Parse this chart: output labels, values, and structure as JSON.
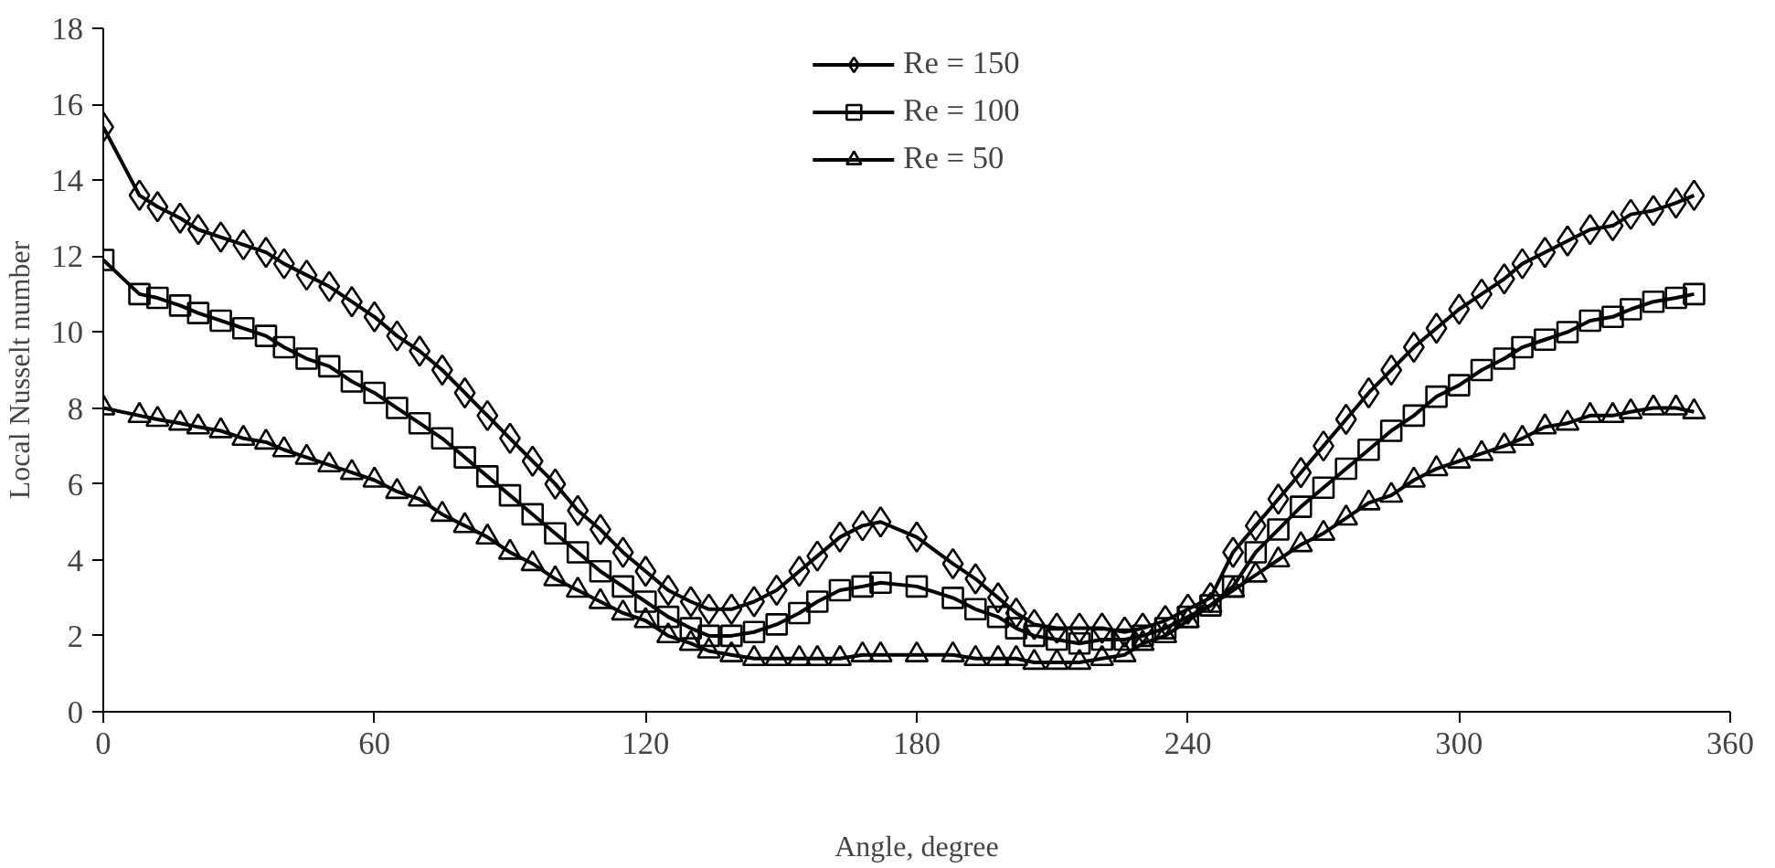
{
  "chart_data": {
    "type": "line",
    "xlabel": "Angle, degree",
    "ylabel": "Local Nusselt number",
    "x": [
      0,
      8,
      12,
      17,
      21,
      26,
      31,
      36,
      40,
      45,
      50,
      55,
      60,
      65,
      70,
      75,
      80,
      85,
      90,
      95,
      100,
      105,
      110,
      115,
      120,
      125,
      130,
      134,
      139,
      144,
      149,
      154,
      158,
      163,
      168,
      172,
      180,
      188,
      193,
      198,
      202,
      206,
      211,
      216,
      221,
      226,
      230,
      235,
      240,
      245,
      250,
      255,
      260,
      265,
      270,
      275,
      280,
      285,
      290,
      295,
      300,
      305,
      310,
      314,
      319,
      324,
      329,
      334,
      338,
      343,
      348,
      352
    ],
    "series": [
      {
        "name": "Re = 150",
        "color": "#000000",
        "marker": "diamond",
        "values": [
          15.4,
          13.6,
          13.3,
          13.0,
          12.7,
          12.5,
          12.3,
          12.1,
          11.8,
          11.5,
          11.2,
          10.8,
          10.4,
          9.9,
          9.5,
          9.0,
          8.4,
          7.8,
          7.2,
          6.6,
          6.0,
          5.3,
          4.8,
          4.2,
          3.7,
          3.2,
          2.9,
          2.7,
          2.7,
          2.9,
          3.2,
          3.7,
          4.1,
          4.6,
          4.9,
          5.0,
          4.6,
          3.9,
          3.5,
          3.0,
          2.6,
          2.3,
          2.2,
          2.2,
          2.2,
          2.1,
          2.2,
          2.4,
          2.7,
          3.0,
          4.2,
          4.9,
          5.6,
          6.3,
          7.0,
          7.7,
          8.4,
          9.0,
          9.6,
          10.1,
          10.6,
          11.0,
          11.4,
          11.8,
          12.1,
          12.4,
          12.7,
          12.8,
          13.1,
          13.2,
          13.4,
          13.6
        ]
      },
      {
        "name": "Re = 100",
        "color": "#000000",
        "marker": "square",
        "values": [
          11.9,
          11.0,
          10.9,
          10.7,
          10.5,
          10.3,
          10.1,
          9.9,
          9.6,
          9.3,
          9.1,
          8.7,
          8.4,
          8.0,
          7.6,
          7.2,
          6.7,
          6.2,
          5.7,
          5.2,
          4.7,
          4.2,
          3.7,
          3.3,
          2.9,
          2.5,
          2.2,
          2.0,
          2.0,
          2.1,
          2.3,
          2.6,
          2.9,
          3.2,
          3.3,
          3.4,
          3.3,
          3.0,
          2.7,
          2.5,
          2.2,
          2.0,
          1.9,
          1.8,
          1.9,
          1.9,
          2.0,
          2.2,
          2.5,
          2.8,
          3.3,
          4.2,
          4.8,
          5.4,
          5.9,
          6.4,
          6.9,
          7.4,
          7.8,
          8.3,
          8.6,
          9.0,
          9.3,
          9.6,
          9.8,
          10.0,
          10.3,
          10.4,
          10.6,
          10.8,
          10.9,
          11.0
        ]
      },
      {
        "name": "Re = 50",
        "color": "#000000",
        "marker": "triangle",
        "values": [
          8.0,
          7.8,
          7.7,
          7.6,
          7.5,
          7.4,
          7.2,
          7.1,
          6.9,
          6.7,
          6.5,
          6.3,
          6.1,
          5.8,
          5.6,
          5.2,
          4.9,
          4.6,
          4.2,
          3.9,
          3.5,
          3.2,
          2.9,
          2.6,
          2.4,
          2.0,
          1.8,
          1.6,
          1.5,
          1.4,
          1.4,
          1.4,
          1.4,
          1.4,
          1.5,
          1.5,
          1.5,
          1.5,
          1.4,
          1.4,
          1.4,
          1.3,
          1.3,
          1.3,
          1.4,
          1.5,
          1.8,
          2.0,
          2.4,
          2.8,
          3.2,
          3.6,
          4.0,
          4.4,
          4.7,
          5.1,
          5.5,
          5.7,
          6.1,
          6.4,
          6.6,
          6.8,
          7.0,
          7.2,
          7.5,
          7.6,
          7.8,
          7.8,
          7.9,
          8.0,
          8.0,
          7.9
        ]
      }
    ],
    "xlim": [
      0,
      360
    ],
    "xticks": [
      0,
      60,
      120,
      180,
      240,
      300,
      360
    ],
    "ylim": [
      0,
      18
    ],
    "yticks": [
      0,
      2,
      4,
      6,
      8,
      10,
      12,
      14,
      16,
      18
    ],
    "grid": false,
    "legend": "top",
    "line_style": "solid"
  }
}
